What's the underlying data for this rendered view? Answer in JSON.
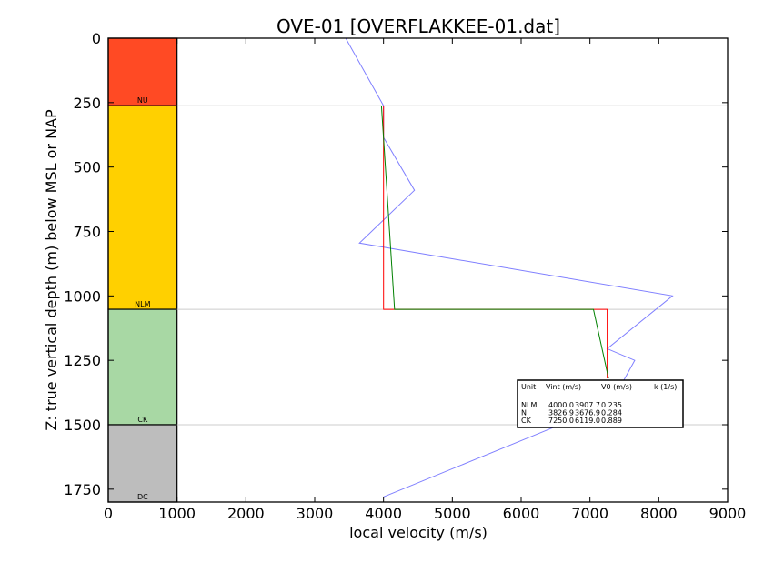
{
  "chart_data": {
    "type": "line",
    "title": "OVE-01 [OVERFLAKKEE-01.dat]",
    "xlabel": "local velocity (m/s)",
    "ylabel": "Z: true vertical depth (m) below MSL or NAP",
    "xlim": [
      0,
      9000
    ],
    "ylim": [
      1800,
      0
    ],
    "x_ticks": [
      "0",
      "1000",
      "2000",
      "3000",
      "4000",
      "5000",
      "6000",
      "7000",
      "8000",
      "9000"
    ],
    "y_ticks": [
      "0",
      "250",
      "500",
      "750",
      "1000",
      "1250",
      "1500",
      "1750"
    ],
    "units": [
      {
        "name": "NU",
        "top": 0,
        "base": 262,
        "color": "#ff4a24"
      },
      {
        "name": "NLM",
        "top": 262,
        "base": 1052,
        "color": "#ffd000"
      },
      {
        "name": "CK",
        "top": 1052,
        "base": 1500,
        "color": "#a8d8a4"
      },
      {
        "name": "DC",
        "top": 1500,
        "base": 1800,
        "color": "#bdbdbd"
      }
    ],
    "column_width_value": 1000,
    "boundaries": [
      262,
      1052,
      1500
    ],
    "series": [
      {
        "color": "#7f7fff",
        "x": [
          3450,
          4000,
          4000,
          4450,
          3650,
          8200,
          7250,
          7650,
          7300,
          4000
        ],
        "y": [
          0,
          262,
          385,
          590,
          795,
          1000,
          1205,
          1250,
          1420,
          1780
        ]
      },
      {
        "color": "#ff0000",
        "x": [
          4000,
          4000,
          7250,
          7250
        ],
        "y": [
          262,
          1052,
          1052,
          1320
        ]
      },
      {
        "color": "#008000",
        "x": [
          3970,
          4160,
          7050,
          7270
        ],
        "y": [
          262,
          1052,
          1052,
          1320
        ]
      }
    ],
    "legend": {
      "placement": "lower-right",
      "header": [
        "Unit",
        "Vint (m/s)",
        "V0 (m/s)",
        "k (1/s)"
      ],
      "rows": [
        [
          "NLM",
          "4000.0",
          "3907.7",
          "0.235"
        ],
        [
          "N",
          "3826.9",
          "3676.9",
          "0.284"
        ],
        [
          "CK",
          "7250.0",
          "6119.0",
          "0.889"
        ]
      ]
    }
  }
}
